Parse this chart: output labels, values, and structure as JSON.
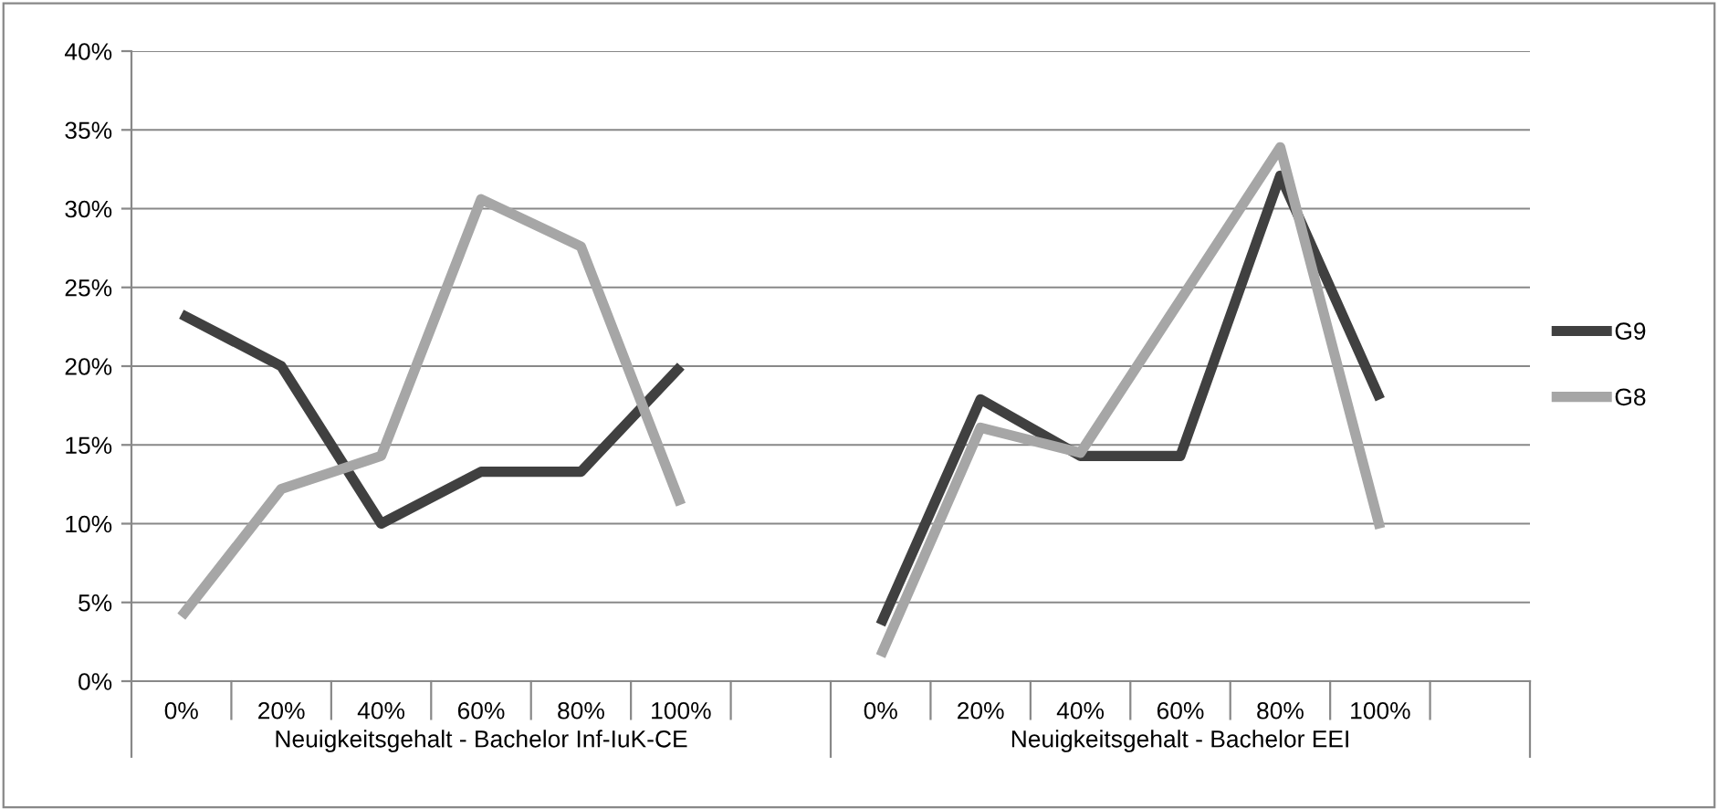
{
  "chart_data": {
    "type": "line",
    "categories": [
      "0%",
      "20%",
      "40%",
      "60%",
      "80%",
      "100%",
      null,
      "0%",
      "20%",
      "40%",
      "60%",
      "80%",
      "100%",
      null
    ],
    "series": [
      {
        "name": "G9",
        "color": "#404040",
        "values": [
          23.3,
          20.0,
          10.0,
          13.3,
          13.3,
          20.0,
          null,
          3.6,
          17.9,
          14.3,
          14.3,
          32.1,
          17.9,
          null
        ]
      },
      {
        "name": "G8",
        "color": "#a6a6a6",
        "values": [
          4.1,
          12.2,
          14.3,
          30.6,
          27.6,
          11.2,
          null,
          1.6,
          16.1,
          14.5,
          24.2,
          33.9,
          9.7,
          null
        ]
      }
    ],
    "ylim": [
      0,
      40
    ],
    "yticks": [
      {
        "value": 0,
        "label": "0%"
      },
      {
        "value": 5,
        "label": "5%"
      },
      {
        "value": 10,
        "label": "10%"
      },
      {
        "value": 15,
        "label": "15%"
      },
      {
        "value": 20,
        "label": "20%"
      },
      {
        "value": 25,
        "label": "25%"
      },
      {
        "value": 30,
        "label": "30%"
      },
      {
        "value": 35,
        "label": "35%"
      },
      {
        "value": 40,
        "label": "40%"
      }
    ],
    "annotations": [
      "Neuigkeitsgehalt - Bachelor Inf-IuK-CE",
      "Neuigkeitsgehalt - Bachelor EEI"
    ],
    "grid": "y",
    "legend": "right",
    "marker": "none",
    "line_style": "solid"
  }
}
